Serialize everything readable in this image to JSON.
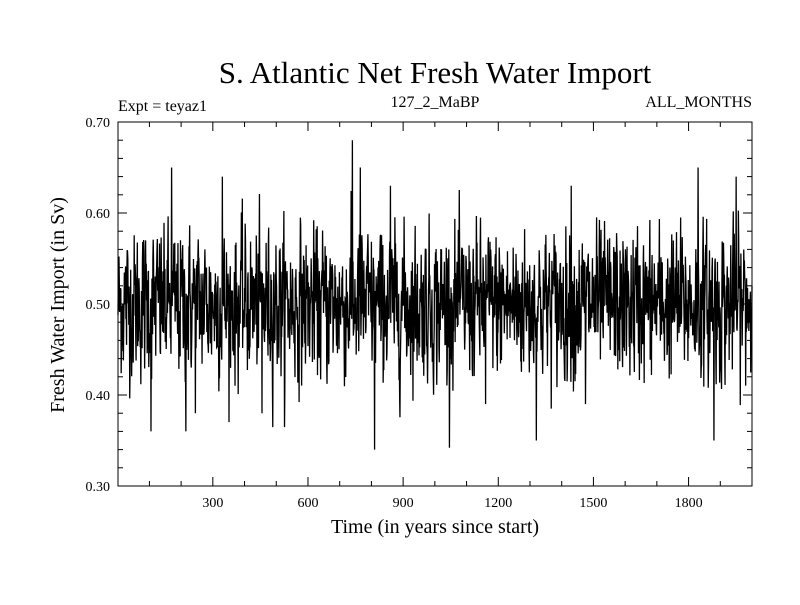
{
  "chart_data": {
    "type": "line",
    "title": "S. Atlantic Net Fresh Water Import",
    "subtitle_left": "Expt = teyaz1",
    "subtitle_center": "127_2_MaBP",
    "subtitle_right": "ALL_MONTHS",
    "xlabel": "Time (in years since start)",
    "ylabel": "Fresh Water Import (in Sv)",
    "xlim": [
      1,
      2000
    ],
    "ylim": [
      0.3,
      0.7
    ],
    "xticks": [
      300,
      600,
      900,
      1200,
      1500,
      1800
    ],
    "xtick_labels": [
      "300",
      "600",
      "900",
      "1200",
      "1500",
      "1800"
    ],
    "yticks": [
      0.3,
      0.4,
      0.5,
      0.6,
      0.7
    ],
    "ytick_labels": [
      "0.30",
      "0.40",
      "0.50",
      "0.60",
      "0.70"
    ],
    "grid": false,
    "series": [
      {
        "name": "S. Atlantic Net Fresh Water Import",
        "n_points": 2000,
        "mean": 0.5,
        "std": 0.04,
        "extremes": [
          {
            "x": 170,
            "y": 0.65
          },
          {
            "x": 105,
            "y": 0.36
          },
          {
            "x": 215,
            "y": 0.36
          },
          {
            "x": 245,
            "y": 0.38
          },
          {
            "x": 330,
            "y": 0.64
          },
          {
            "x": 455,
            "y": 0.38
          },
          {
            "x": 740,
            "y": 0.68
          },
          {
            "x": 765,
            "y": 0.65
          },
          {
            "x": 810,
            "y": 0.34
          },
          {
            "x": 860,
            "y": 0.63
          },
          {
            "x": 1160,
            "y": 0.39
          },
          {
            "x": 1320,
            "y": 0.35
          },
          {
            "x": 1430,
            "y": 0.63
          },
          {
            "x": 1475,
            "y": 0.39
          },
          {
            "x": 1830,
            "y": 0.65
          },
          {
            "x": 1880,
            "y": 0.35
          },
          {
            "x": 1950,
            "y": 0.64
          }
        ]
      }
    ]
  }
}
